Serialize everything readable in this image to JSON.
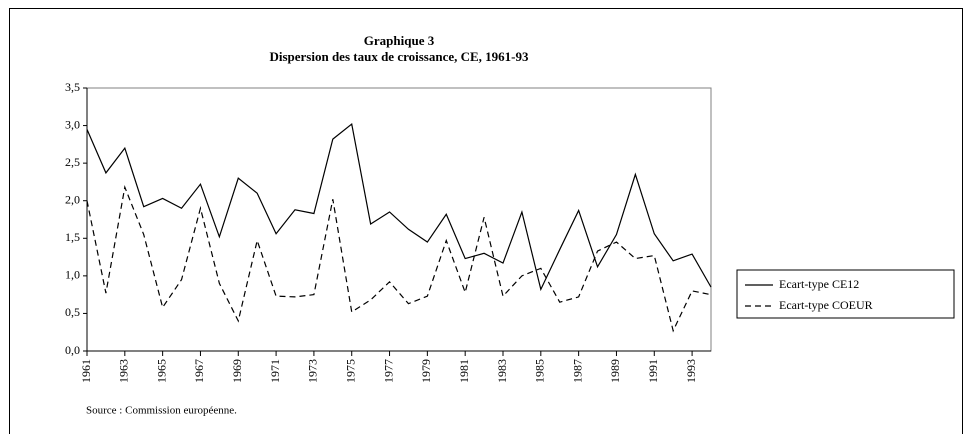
{
  "chart_data": {
    "type": "line",
    "title": "Graphique 3",
    "subtitle": "Dispersion des taux de croissance, CE, 1961-93",
    "source": "Source : Commission européenne.",
    "x": [
      1961,
      1962,
      1963,
      1964,
      1965,
      1966,
      1967,
      1968,
      1969,
      1970,
      1971,
      1972,
      1973,
      1974,
      1975,
      1976,
      1977,
      1978,
      1979,
      1980,
      1981,
      1982,
      1983,
      1984,
      1985,
      1986,
      1987,
      1988,
      1989,
      1990,
      1991,
      1992,
      1993,
      1994
    ],
    "xlim": [
      1961,
      1994
    ],
    "xticks": [
      1961,
      1963,
      1965,
      1967,
      1969,
      1971,
      1973,
      1975,
      1977,
      1979,
      1981,
      1983,
      1985,
      1987,
      1989,
      1991,
      1993
    ],
    "ylim": [
      0,
      3.5
    ],
    "yticks": [
      {
        "value": 0,
        "label": "0,0"
      },
      {
        "value": 0.5,
        "label": "0,5"
      },
      {
        "value": 1,
        "label": "1,0"
      },
      {
        "value": 1.5,
        "label": "1,5"
      },
      {
        "value": 2,
        "label": "2,0"
      },
      {
        "value": 2.5,
        "label": "2,5"
      },
      {
        "value": 3,
        "label": "3,0"
      },
      {
        "value": 3.5,
        "label": "3,5"
      }
    ],
    "legend": "right",
    "series": [
      {
        "name": "Ecart-type CE12",
        "color": "#000000",
        "dash": false,
        "values": [
          2.95,
          2.37,
          2.7,
          1.92,
          2.03,
          1.9,
          2.22,
          1.52,
          2.3,
          2.1,
          1.56,
          1.88,
          1.83,
          2.82,
          3.02,
          1.69,
          1.85,
          1.62,
          1.45,
          1.82,
          1.23,
          1.3,
          1.17,
          1.85,
          0.82,
          1.35,
          1.87,
          1.12,
          1.55,
          2.35,
          1.56,
          1.2,
          1.29,
          0.85
        ]
      },
      {
        "name": "Ecart-type COEUR",
        "color": "#000000",
        "dash": true,
        "values": [
          2.0,
          0.77,
          2.18,
          1.55,
          0.58,
          0.95,
          1.9,
          0.9,
          0.4,
          1.47,
          0.73,
          0.72,
          0.75,
          2.02,
          0.52,
          0.68,
          0.92,
          0.63,
          0.73,
          1.47,
          0.78,
          1.78,
          0.73,
          1.0,
          1.1,
          0.65,
          0.72,
          1.33,
          1.45,
          1.23,
          1.27,
          0.27,
          0.8,
          0.75
        ]
      }
    ]
  }
}
